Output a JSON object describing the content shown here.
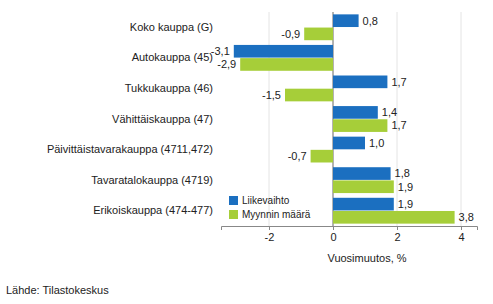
{
  "chart_data": {
    "type": "bar",
    "orientation": "horizontal",
    "categories": [
      "Koko kauppa (G)",
      "Autokauppa (45)",
      "Tukkukauppa (46)",
      "Vähittäiskauppa (47)",
      "Päivittäistavarakauppa (4711,472)",
      "Tavaratalokauppa (4719)",
      "Erikoiskauppa (474-477)"
    ],
    "series": [
      {
        "name": "Liikevaihto",
        "color": "#1b6fc0",
        "values": [
          0.8,
          -3.1,
          1.7,
          1.4,
          1.0,
          1.8,
          1.9
        ],
        "value_labels": [
          "0,8",
          "-3,1",
          "1,7",
          "1,4",
          "1,0",
          "1,8",
          "1,9"
        ]
      },
      {
        "name": "Myynnin määrä",
        "color": "#a6ce39",
        "values": [
          -0.9,
          -2.9,
          -1.5,
          1.7,
          -0.7,
          1.9,
          3.8
        ],
        "value_labels": [
          "-0,9",
          "-2,9",
          "-1,5",
          "1,7",
          "-0,7",
          "1,9",
          "3,8"
        ]
      }
    ],
    "xlabel": "Vuosimuutos, %",
    "annotations": [
      "Lähde: Tilastokeskus"
    ],
    "xlim": [
      -3.5,
      4.5
    ],
    "xticks": [
      -2,
      0,
      2,
      4
    ],
    "grid": true,
    "legend": "lower left",
    "data_labels": true
  }
}
